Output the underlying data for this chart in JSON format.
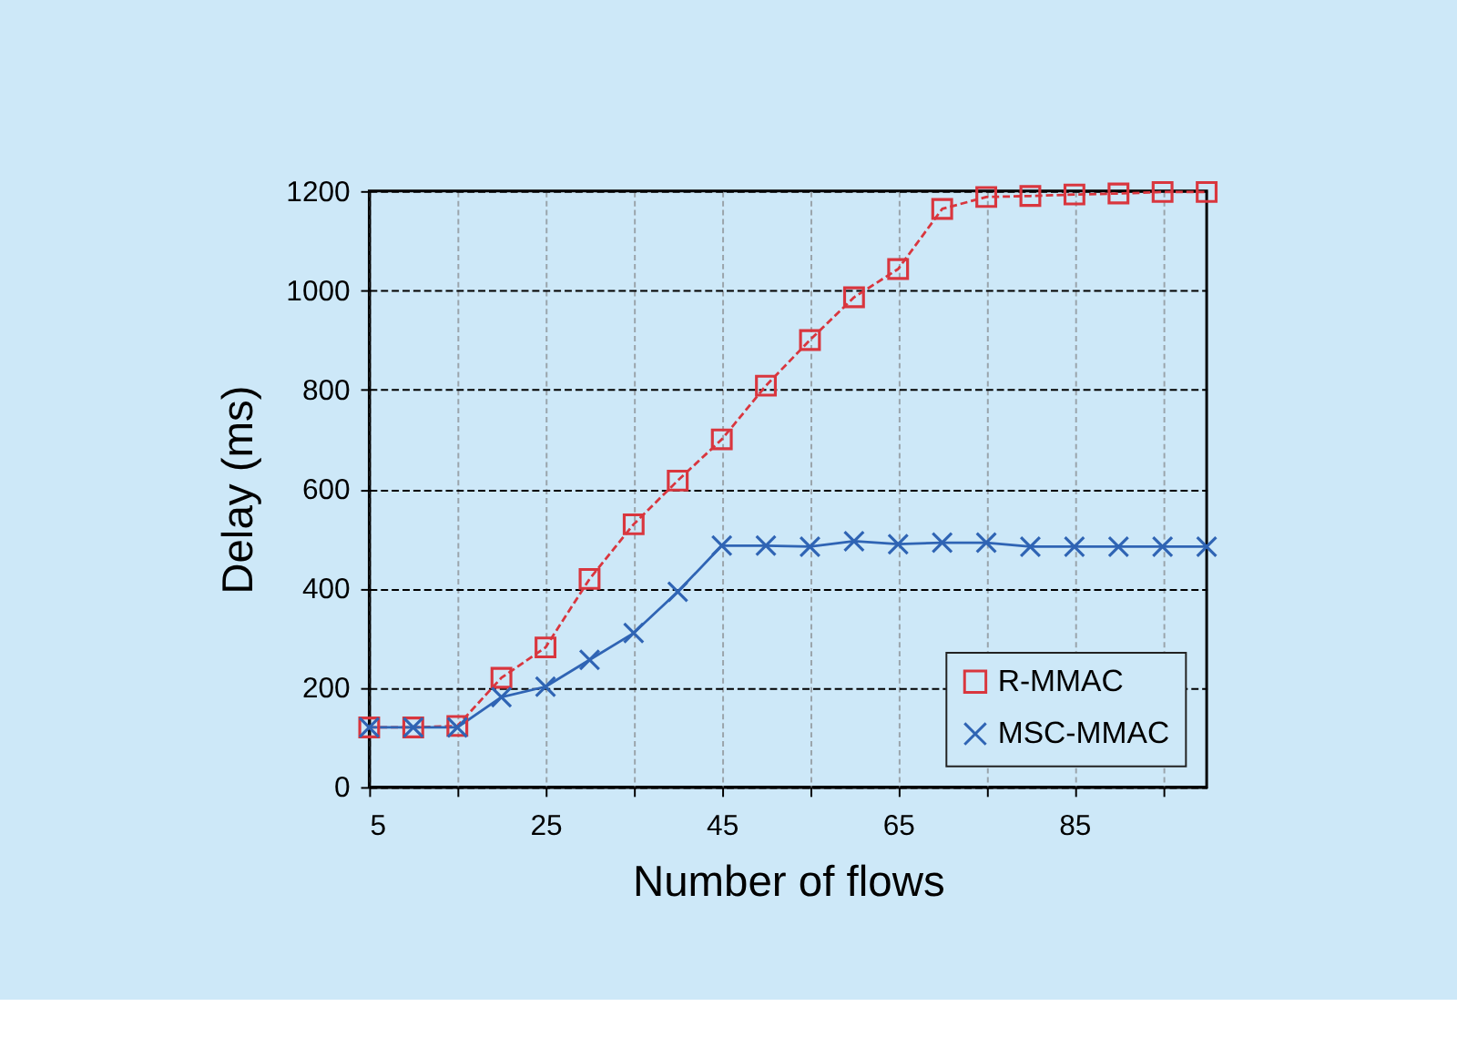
{
  "chart_data": {
    "type": "line",
    "xlabel": "Number of flows",
    "ylabel": "Delay (ms)",
    "x": [
      5,
      10,
      15,
      20,
      25,
      30,
      35,
      40,
      45,
      50,
      55,
      60,
      65,
      70,
      75,
      80,
      85,
      90,
      95,
      100
    ],
    "series": [
      {
        "name": "R-MMAC",
        "color": "#d9363e",
        "marker": "square",
        "line_style": "dashed",
        "values": [
          120,
          120,
          123,
          220,
          281,
          419,
          529,
          617,
          700,
          808,
          900,
          986,
          1043,
          1164,
          1188,
          1190,
          1193,
          1195,
          1198,
          1198
        ]
      },
      {
        "name": "MSC-MMAC",
        "color": "#2f64b4",
        "marker": "cross",
        "line_style": "solid",
        "values": [
          120,
          120,
          120,
          181,
          202,
          256,
          310,
          393,
          486,
          486,
          484,
          495,
          489,
          492,
          492,
          484,
          484,
          484,
          484,
          484
        ]
      }
    ],
    "xlim": [
      5,
      100
    ],
    "xticks": [
      5,
      {
        "value": 15,
        "label": null
      },
      25,
      {
        "value": 35,
        "label": null
      },
      45,
      {
        "value": 55,
        "label": null
      },
      65,
      {
        "value": 75,
        "label": null
      },
      85,
      {
        "value": 95,
        "label": null
      }
    ],
    "ylim": [
      0,
      1200
    ],
    "yticks": [
      0,
      200,
      400,
      600,
      800,
      1000,
      1200
    ],
    "grid": true,
    "legend": "bottom right"
  }
}
